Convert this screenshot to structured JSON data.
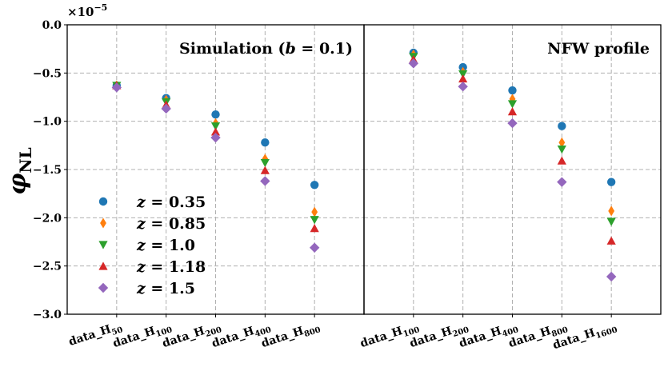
{
  "chart_data": {
    "type": "scatter",
    "ylabel": "φ",
    "ylabel_sub": "NL",
    "y_multiplier": "×10",
    "y_multiplier_exp": "−5",
    "ylim": [
      -3.0,
      0.0
    ],
    "yticks": [
      0.0,
      -0.5,
      -1.0,
      -1.5,
      -2.0,
      -2.5,
      -3.0
    ],
    "ytick_labels": [
      "0.0",
      "−0.5",
      "−1.0",
      "−1.5",
      "−2.0",
      "−2.5",
      "−3.0"
    ],
    "legend": [
      {
        "var": "z",
        "eq": " = 0.35",
        "color": "#1f77b4",
        "marker": "circle"
      },
      {
        "var": "z",
        "eq": " = 0.85",
        "color": "#ff7f0e",
        "marker": "thin_diamond"
      },
      {
        "var": "z",
        "eq": " = 1.0",
        "color": "#2ca02c",
        "marker": "triangle_down"
      },
      {
        "var": "z",
        "eq": " = 1.18",
        "color": "#d62728",
        "marker": "triangle_up"
      },
      {
        "var": "z",
        "eq": " = 1.5",
        "color": "#9467bd",
        "marker": "diamond"
      }
    ],
    "panels": [
      {
        "title_main": "Simulation (",
        "title_var": "b",
        "title_rest": " = 0.1)",
        "categories": [
          {
            "base": "data_H",
            "sub": "50"
          },
          {
            "base": "data_H",
            "sub": "100"
          },
          {
            "base": "data_H",
            "sub": "200"
          },
          {
            "base": "data_H",
            "sub": "400"
          },
          {
            "base": "data_H",
            "sub": "800"
          }
        ],
        "series": [
          {
            "name": "z = 0.35",
            "values": [
              -0.63,
              -0.76,
              -0.93,
              -1.22,
              -1.66
            ]
          },
          {
            "name": "z = 0.85",
            "values": [
              -0.63,
              -0.78,
              -1.02,
              -1.39,
              -1.94
            ]
          },
          {
            "name": "z = 1.0",
            "values": [
              -0.63,
              -0.8,
              -1.05,
              -1.43,
              -2.02
            ]
          },
          {
            "name": "z = 1.18",
            "values": [
              -0.63,
              -0.83,
              -1.11,
              -1.51,
              -2.11
            ]
          },
          {
            "name": "z = 1.5",
            "values": [
              -0.65,
              -0.87,
              -1.17,
              -1.62,
              -2.31
            ]
          }
        ]
      },
      {
        "title_main": "NFW profile",
        "title_var": "",
        "title_rest": "",
        "categories": [
          {
            "base": "data_H",
            "sub": "100"
          },
          {
            "base": "data_H",
            "sub": "200"
          },
          {
            "base": "data_H",
            "sub": "400"
          },
          {
            "base": "data_H",
            "sub": "800"
          },
          {
            "base": "data_H",
            "sub": "1600"
          }
        ],
        "series": [
          {
            "name": "z = 0.35",
            "values": [
              -0.29,
              -0.44,
              -0.68,
              -1.05,
              -1.63
            ]
          },
          {
            "name": "z = 0.85",
            "values": [
              -0.31,
              -0.49,
              -0.77,
              -1.22,
              -1.93
            ]
          },
          {
            "name": "z = 1.0",
            "values": [
              -0.33,
              -0.51,
              -0.82,
              -1.29,
              -2.04
            ]
          },
          {
            "name": "z = 1.18",
            "values": [
              -0.36,
              -0.56,
              -0.9,
              -1.41,
              -2.24
            ]
          },
          {
            "name": "z = 1.5",
            "values": [
              -0.4,
              -0.64,
              -1.02,
              -1.63,
              -2.61
            ]
          }
        ]
      }
    ]
  }
}
